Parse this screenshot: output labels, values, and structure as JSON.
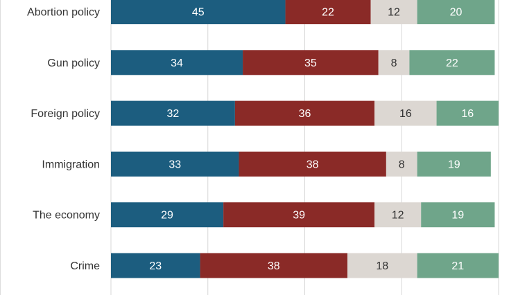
{
  "chart_data": {
    "type": "bar",
    "orientation": "horizontal",
    "stacked": true,
    "categories": [
      "Abortion policy",
      "Gun policy",
      "Foreign policy",
      "Immigration",
      "The economy",
      "Crime"
    ],
    "series": [
      {
        "values": [
          45,
          34,
          32,
          33,
          29,
          23
        ],
        "color": "#1c5d7f",
        "label_color": "#ffffff"
      },
      {
        "values": [
          22,
          35,
          36,
          38,
          39,
          38
        ],
        "color": "#8a2a27",
        "label_color": "#ffffff"
      },
      {
        "values": [
          12,
          8,
          16,
          8,
          12,
          18
        ],
        "color": "#dcd7d2",
        "label_color": "#333333"
      },
      {
        "values": [
          20,
          22,
          16,
          19,
          19,
          21
        ],
        "color": "#6fa58a",
        "label_color": "#ffffff"
      }
    ],
    "xlim": [
      0,
      100
    ],
    "grid": true,
    "legend": "none"
  }
}
